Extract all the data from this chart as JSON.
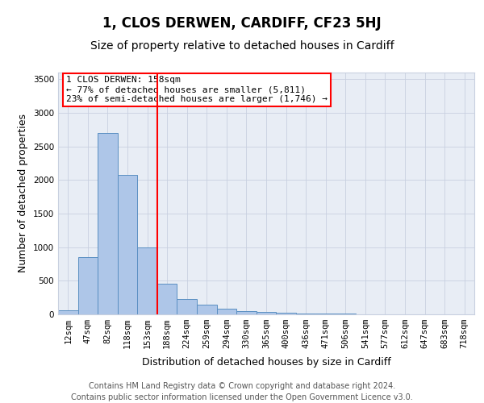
{
  "title": "1, CLOS DERWEN, CARDIFF, CF23 5HJ",
  "subtitle": "Size of property relative to detached houses in Cardiff",
  "xlabel": "Distribution of detached houses by size in Cardiff",
  "ylabel": "Number of detached properties",
  "categories": [
    "12sqm",
    "47sqm",
    "82sqm",
    "118sqm",
    "153sqm",
    "188sqm",
    "224sqm",
    "259sqm",
    "294sqm",
    "330sqm",
    "365sqm",
    "400sqm",
    "436sqm",
    "471sqm",
    "506sqm",
    "541sqm",
    "577sqm",
    "612sqm",
    "647sqm",
    "683sqm",
    "718sqm"
  ],
  "values": [
    60,
    850,
    2700,
    2080,
    1000,
    460,
    230,
    150,
    80,
    50,
    40,
    25,
    15,
    10,
    8,
    6,
    5,
    5,
    4,
    4,
    3
  ],
  "bar_color": "#aec6e8",
  "bar_edge_color": "#5a8fc2",
  "ylim": [
    0,
    3600
  ],
  "yticks": [
    0,
    500,
    1000,
    1500,
    2000,
    2500,
    3000,
    3500
  ],
  "red_line_x": 4.5,
  "annotation_line1": "1 CLOS DERWEN: 158sqm",
  "annotation_line2": "← 77% of detached houses are smaller (5,811)",
  "annotation_line3": "23% of semi-detached houses are larger (1,746) →",
  "footer_line1": "Contains HM Land Registry data © Crown copyright and database right 2024.",
  "footer_line2": "Contains public sector information licensed under the Open Government Licence v3.0.",
  "background_color": "#ffffff",
  "grid_color": "#c8d0e0",
  "axes_bg": "#e8edf5",
  "title_fontsize": 12,
  "subtitle_fontsize": 10,
  "axis_label_fontsize": 9,
  "tick_fontsize": 7.5,
  "annotation_fontsize": 8,
  "footer_fontsize": 7
}
